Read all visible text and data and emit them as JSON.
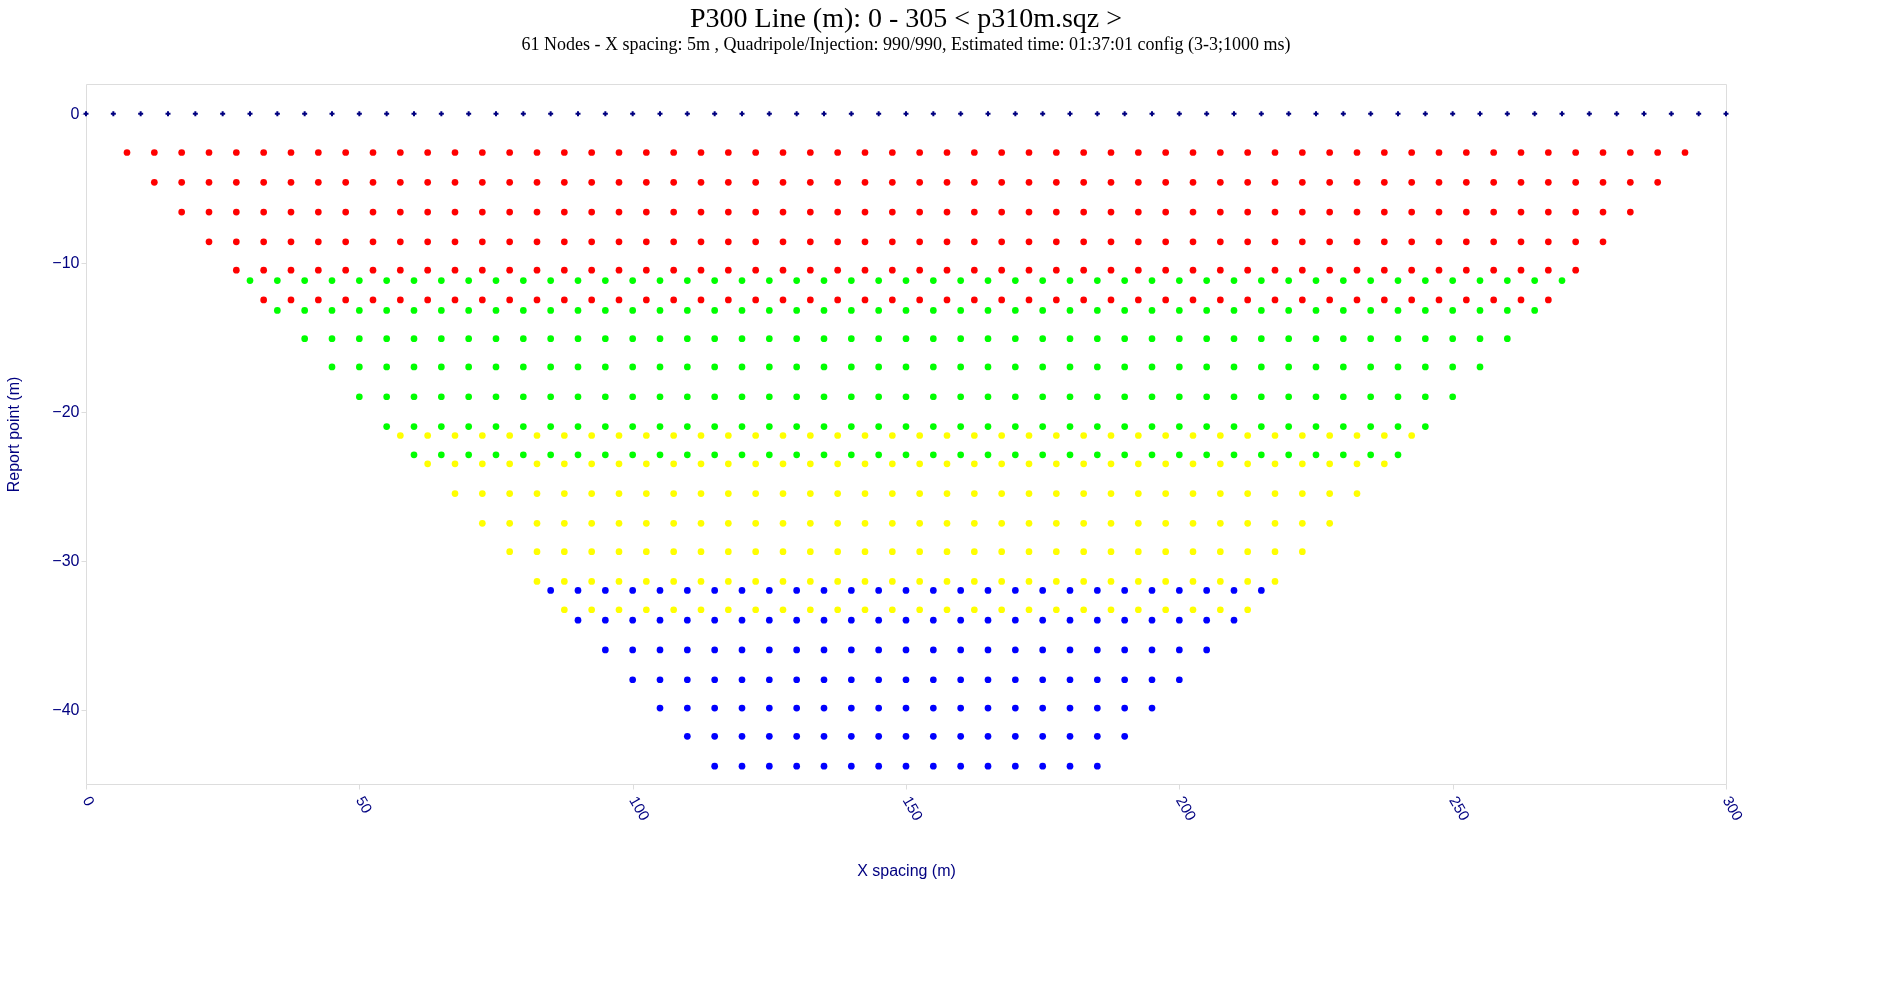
{
  "chart_data": {
    "type": "scatter",
    "title": "P300   Line (m): 0 - 305 < p310m.sqz >",
    "subtitle": "61 Nodes  - X spacing: 5m , Quadripole/Injection: 990/990, Estimated time: 01:37:01 config (3-3;1000 ms)",
    "xlabel": "X spacing (m)",
    "ylabel": "Report point (m)",
    "xlim": [
      0,
      300
    ],
    "ylim": [
      -45,
      2
    ],
    "xticks": [
      0,
      50,
      100,
      150,
      200,
      250,
      300
    ],
    "yticks": [
      0,
      -10,
      -20,
      -30,
      -40
    ],
    "grid": false,
    "legend": false,
    "marker": "circle",
    "series": [
      {
        "color": "#000080",
        "marker": "cross",
        "x": [
          0,
          5,
          10,
          15,
          20,
          25,
          30,
          35,
          40,
          45,
          50,
          55,
          60,
          65,
          70,
          75,
          80,
          85,
          90,
          95,
          100,
          105,
          110,
          115,
          120,
          125,
          130,
          135,
          140,
          145,
          150,
          155,
          160,
          165,
          170,
          175,
          180,
          185,
          190,
          195,
          200,
          205,
          210,
          215,
          220,
          225,
          230,
          235,
          240,
          245,
          250,
          255,
          260,
          265,
          270,
          275,
          280,
          285,
          290,
          295,
          300
        ],
        "values": [
          0,
          0,
          0,
          0,
          0,
          0,
          0,
          0,
          0,
          0,
          0,
          0,
          0,
          0,
          0,
          0,
          0,
          0,
          0,
          0,
          0,
          0,
          0,
          0,
          0,
          0,
          0,
          0,
          0,
          0,
          0,
          0,
          0,
          0,
          0,
          0,
          0,
          0,
          0,
          0,
          0,
          0,
          0,
          0,
          0,
          0,
          0,
          0,
          0,
          0,
          0,
          0,
          0,
          0,
          0,
          0,
          0,
          0,
          0,
          0,
          0
        ]
      },
      {
        "color": "#ff0000",
        "x": [
          7.5,
          12.5,
          17.5,
          22.5,
          27.5,
          32.5,
          37.5,
          42.5,
          47.5,
          52.5,
          57.5,
          62.5,
          67.5,
          72.5,
          77.5,
          82.5,
          87.5,
          92.5,
          97.5,
          102.5,
          107.5,
          112.5,
          117.5,
          122.5,
          127.5,
          132.5,
          137.5,
          142.5,
          147.5,
          152.5,
          157.5,
          162.5,
          167.5,
          172.5,
          177.5,
          182.5,
          187.5,
          192.5,
          197.5,
          202.5,
          207.5,
          212.5,
          217.5,
          222.5,
          227.5,
          232.5,
          237.5,
          242.5,
          247.5,
          252.5,
          257.5,
          262.5,
          267.5,
          272.5,
          277.5,
          282.5,
          287.5,
          292.5
        ],
        "values": [
          -2.6,
          -2.6,
          -2.6,
          -2.6,
          -2.6,
          -2.6,
          -2.6,
          -2.6,
          -2.6,
          -2.6,
          -2.6,
          -2.6,
          -2.6,
          -2.6,
          -2.6,
          -2.6,
          -2.6,
          -2.6,
          -2.6,
          -2.6,
          -2.6,
          -2.6,
          -2.6,
          -2.6,
          -2.6,
          -2.6,
          -2.6,
          -2.6,
          -2.6,
          -2.6,
          -2.6,
          -2.6,
          -2.6,
          -2.6,
          -2.6,
          -2.6,
          -2.6,
          -2.6,
          -2.6,
          -2.6,
          -2.6,
          -2.6,
          -2.6,
          -2.6,
          -2.6,
          -2.6,
          -2.6,
          -2.6,
          -2.6,
          -2.6,
          -2.6,
          -2.6,
          -2.6,
          -2.6,
          -2.6,
          -2.6,
          -2.6,
          -2.6
        ]
      },
      {
        "color": "#ff0000",
        "x": [
          12.5,
          17.5,
          22.5,
          27.5,
          32.5,
          37.5,
          42.5,
          47.5,
          52.5,
          57.5,
          62.5,
          67.5,
          72.5,
          77.5,
          82.5,
          87.5,
          92.5,
          97.5,
          102.5,
          107.5,
          112.5,
          117.5,
          122.5,
          127.5,
          132.5,
          137.5,
          142.5,
          147.5,
          152.5,
          157.5,
          162.5,
          167.5,
          172.5,
          177.5,
          182.5,
          187.5,
          192.5,
          197.5,
          202.5,
          207.5,
          212.5,
          217.5,
          222.5,
          227.5,
          232.5,
          237.5,
          242.5,
          247.5,
          252.5,
          257.5,
          262.5,
          267.5,
          272.5,
          277.5,
          282.5,
          287.5
        ],
        "values": [
          -4.6,
          -4.6,
          -4.6,
          -4.6,
          -4.6,
          -4.6,
          -4.6,
          -4.6,
          -4.6,
          -4.6,
          -4.6,
          -4.6,
          -4.6,
          -4.6,
          -4.6,
          -4.6,
          -4.6,
          -4.6,
          -4.6,
          -4.6,
          -4.6,
          -4.6,
          -4.6,
          -4.6,
          -4.6,
          -4.6,
          -4.6,
          -4.6,
          -4.6,
          -4.6,
          -4.6,
          -4.6,
          -4.6,
          -4.6,
          -4.6,
          -4.6,
          -4.6,
          -4.6,
          -4.6,
          -4.6,
          -4.6,
          -4.6,
          -4.6,
          -4.6,
          -4.6,
          -4.6,
          -4.6,
          -4.6,
          -4.6,
          -4.6,
          -4.6,
          -4.6,
          -4.6,
          -4.6,
          -4.6,
          -4.6
        ]
      },
      {
        "color": "#ff0000",
        "x": [
          17.5,
          22.5,
          27.5,
          32.5,
          37.5,
          42.5,
          47.5,
          52.5,
          57.5,
          62.5,
          67.5,
          72.5,
          77.5,
          82.5,
          87.5,
          92.5,
          97.5,
          102.5,
          107.5,
          112.5,
          117.5,
          122.5,
          127.5,
          132.5,
          137.5,
          142.5,
          147.5,
          152.5,
          157.5,
          162.5,
          167.5,
          172.5,
          177.5,
          182.5,
          187.5,
          192.5,
          197.5,
          202.5,
          207.5,
          212.5,
          217.5,
          222.5,
          227.5,
          232.5,
          237.5,
          242.5,
          247.5,
          252.5,
          257.5,
          262.5,
          267.5,
          272.5,
          277.5,
          282.5
        ],
        "values": [
          -6.6,
          -6.6,
          -6.6,
          -6.6,
          -6.6,
          -6.6,
          -6.6,
          -6.6,
          -6.6,
          -6.6,
          -6.6,
          -6.6,
          -6.6,
          -6.6,
          -6.6,
          -6.6,
          -6.6,
          -6.6,
          -6.6,
          -6.6,
          -6.6,
          -6.6,
          -6.6,
          -6.6,
          -6.6,
          -6.6,
          -6.6,
          -6.6,
          -6.6,
          -6.6,
          -6.6,
          -6.6,
          -6.6,
          -6.6,
          -6.6,
          -6.6,
          -6.6,
          -6.6,
          -6.6,
          -6.6,
          -6.6,
          -6.6,
          -6.6,
          -6.6,
          -6.6,
          -6.6,
          -6.6,
          -6.6,
          -6.6,
          -6.6,
          -6.6,
          -6.6,
          -6.6,
          -6.6
        ]
      },
      {
        "color": "#ff0000",
        "x": [
          22.5,
          27.5,
          32.5,
          37.5,
          42.5,
          47.5,
          52.5,
          57.5,
          62.5,
          67.5,
          72.5,
          77.5,
          82.5,
          87.5,
          92.5,
          97.5,
          102.5,
          107.5,
          112.5,
          117.5,
          122.5,
          127.5,
          132.5,
          137.5,
          142.5,
          147.5,
          152.5,
          157.5,
          162.5,
          167.5,
          172.5,
          177.5,
          182.5,
          187.5,
          192.5,
          197.5,
          202.5,
          207.5,
          212.5,
          217.5,
          222.5,
          227.5,
          232.5,
          237.5,
          242.5,
          247.5,
          252.5,
          257.5,
          262.5,
          267.5,
          272.5,
          277.5
        ],
        "values": [
          -8.6,
          -8.6,
          -8.6,
          -8.6,
          -8.6,
          -8.6,
          -8.6,
          -8.6,
          -8.6,
          -8.6,
          -8.6,
          -8.6,
          -8.6,
          -8.6,
          -8.6,
          -8.6,
          -8.6,
          -8.6,
          -8.6,
          -8.6,
          -8.6,
          -8.6,
          -8.6,
          -8.6,
          -8.6,
          -8.6,
          -8.6,
          -8.6,
          -8.6,
          -8.6,
          -8.6,
          -8.6,
          -8.6,
          -8.6,
          -8.6,
          -8.6,
          -8.6,
          -8.6,
          -8.6,
          -8.6,
          -8.6,
          -8.6,
          -8.6,
          -8.6,
          -8.6,
          -8.6,
          -8.6,
          -8.6,
          -8.6,
          -8.6,
          -8.6,
          -8.6
        ]
      },
      {
        "color": "#ff0000",
        "x": [
          27.5,
          32.5,
          37.5,
          42.5,
          47.5,
          52.5,
          57.5,
          62.5,
          67.5,
          72.5,
          77.5,
          82.5,
          87.5,
          92.5,
          97.5,
          102.5,
          107.5,
          112.5,
          117.5,
          122.5,
          127.5,
          132.5,
          137.5,
          142.5,
          147.5,
          152.5,
          157.5,
          162.5,
          167.5,
          172.5,
          177.5,
          182.5,
          187.5,
          192.5,
          197.5,
          202.5,
          207.5,
          212.5,
          217.5,
          222.5,
          227.5,
          232.5,
          237.5,
          242.5,
          247.5,
          252.5,
          257.5,
          262.5,
          267.5,
          272.5
        ],
        "values": [
          -10.5,
          -10.5,
          -10.5,
          -10.5,
          -10.5,
          -10.5,
          -10.5,
          -10.5,
          -10.5,
          -10.5,
          -10.5,
          -10.5,
          -10.5,
          -10.5,
          -10.5,
          -10.5,
          -10.5,
          -10.5,
          -10.5,
          -10.5,
          -10.5,
          -10.5,
          -10.5,
          -10.5,
          -10.5,
          -10.5,
          -10.5,
          -10.5,
          -10.5,
          -10.5,
          -10.5,
          -10.5,
          -10.5,
          -10.5,
          -10.5,
          -10.5,
          -10.5,
          -10.5,
          -10.5,
          -10.5,
          -10.5,
          -10.5,
          -10.5,
          -10.5,
          -10.5,
          -10.5,
          -10.5,
          -10.5,
          -10.5,
          -10.5
        ]
      },
      {
        "color": "#ff0000",
        "x": [
          32.5,
          37.5,
          42.5,
          47.5,
          52.5,
          57.5,
          62.5,
          67.5,
          72.5,
          77.5,
          82.5,
          87.5,
          92.5,
          97.5,
          102.5,
          107.5,
          112.5,
          117.5,
          122.5,
          127.5,
          132.5,
          137.5,
          142.5,
          147.5,
          152.5,
          157.5,
          162.5,
          167.5,
          172.5,
          177.5,
          182.5,
          187.5,
          192.5,
          197.5,
          202.5,
          207.5,
          212.5,
          217.5,
          222.5,
          227.5,
          232.5,
          237.5,
          242.5,
          247.5,
          252.5,
          257.5,
          262.5,
          267.5
        ],
        "values": [
          -12.5,
          -12.5,
          -12.5,
          -12.5,
          -12.5,
          -12.5,
          -12.5,
          -12.5,
          -12.5,
          -12.5,
          -12.5,
          -12.5,
          -12.5,
          -12.5,
          -12.5,
          -12.5,
          -12.5,
          -12.5,
          -12.5,
          -12.5,
          -12.5,
          -12.5,
          -12.5,
          -12.5,
          -12.5,
          -12.5,
          -12.5,
          -12.5,
          -12.5,
          -12.5,
          -12.5,
          -12.5,
          -12.5,
          -12.5,
          -12.5,
          -12.5,
          -12.5,
          -12.5,
          -12.5,
          -12.5,
          -12.5,
          -12.5,
          -12.5,
          -12.5,
          -12.5,
          -12.5,
          -12.5,
          -12.5
        ]
      },
      {
        "color": "#00ff00",
        "x": [
          30,
          35,
          40,
          45,
          50,
          55,
          60,
          65,
          70,
          75,
          80,
          85,
          90,
          95,
          100,
          105,
          110,
          115,
          120,
          125,
          130,
          135,
          140,
          145,
          150,
          155,
          160,
          165,
          170,
          175,
          180,
          185,
          190,
          195,
          200,
          205,
          210,
          215,
          220,
          225,
          230,
          235,
          240,
          245,
          250,
          255,
          260,
          265,
          270
        ],
        "values": [
          -11.2,
          -11.2,
          -11.2,
          -11.2,
          -11.2,
          -11.2,
          -11.2,
          -11.2,
          -11.2,
          -11.2,
          -11.2,
          -11.2,
          -11.2,
          -11.2,
          -11.2,
          -11.2,
          -11.2,
          -11.2,
          -11.2,
          -11.2,
          -11.2,
          -11.2,
          -11.2,
          -11.2,
          -11.2,
          -11.2,
          -11.2,
          -11.2,
          -11.2,
          -11.2,
          -11.2,
          -11.2,
          -11.2,
          -11.2,
          -11.2,
          -11.2,
          -11.2,
          -11.2,
          -11.2,
          -11.2,
          -11.2,
          -11.2,
          -11.2,
          -11.2,
          -11.2,
          -11.2,
          -11.2,
          -11.2,
          -11.2
        ]
      },
      {
        "color": "#00ff00",
        "x": [
          35,
          40,
          45,
          50,
          55,
          60,
          65,
          70,
          75,
          80,
          85,
          90,
          95,
          100,
          105,
          110,
          115,
          120,
          125,
          130,
          135,
          140,
          145,
          150,
          155,
          160,
          165,
          170,
          175,
          180,
          185,
          190,
          195,
          200,
          205,
          210,
          215,
          220,
          225,
          230,
          235,
          240,
          245,
          250,
          255,
          260,
          265
        ],
        "values": [
          -13.2,
          -13.2,
          -13.2,
          -13.2,
          -13.2,
          -13.2,
          -13.2,
          -13.2,
          -13.2,
          -13.2,
          -13.2,
          -13.2,
          -13.2,
          -13.2,
          -13.2,
          -13.2,
          -13.2,
          -13.2,
          -13.2,
          -13.2,
          -13.2,
          -13.2,
          -13.2,
          -13.2,
          -13.2,
          -13.2,
          -13.2,
          -13.2,
          -13.2,
          -13.2,
          -13.2,
          -13.2,
          -13.2,
          -13.2,
          -13.2,
          -13.2,
          -13.2,
          -13.2,
          -13.2,
          -13.2,
          -13.2,
          -13.2,
          -13.2,
          -13.2,
          -13.2,
          -13.2,
          -13.2
        ]
      },
      {
        "color": "#00ff00",
        "x": [
          40,
          45,
          50,
          55,
          60,
          65,
          70,
          75,
          80,
          85,
          90,
          95,
          100,
          105,
          110,
          115,
          120,
          125,
          130,
          135,
          140,
          145,
          150,
          155,
          160,
          165,
          170,
          175,
          180,
          185,
          190,
          195,
          200,
          205,
          210,
          215,
          220,
          225,
          230,
          235,
          240,
          245,
          250,
          255,
          260
        ],
        "values": [
          -15.1,
          -15.1,
          -15.1,
          -15.1,
          -15.1,
          -15.1,
          -15.1,
          -15.1,
          -15.1,
          -15.1,
          -15.1,
          -15.1,
          -15.1,
          -15.1,
          -15.1,
          -15.1,
          -15.1,
          -15.1,
          -15.1,
          -15.1,
          -15.1,
          -15.1,
          -15.1,
          -15.1,
          -15.1,
          -15.1,
          -15.1,
          -15.1,
          -15.1,
          -15.1,
          -15.1,
          -15.1,
          -15.1,
          -15.1,
          -15.1,
          -15.1,
          -15.1,
          -15.1,
          -15.1,
          -15.1,
          -15.1,
          -15.1,
          -15.1,
          -15.1,
          -15.1
        ]
      },
      {
        "color": "#00ff00",
        "x": [
          45,
          50,
          55,
          60,
          65,
          70,
          75,
          80,
          85,
          90,
          95,
          100,
          105,
          110,
          115,
          120,
          125,
          130,
          135,
          140,
          145,
          150,
          155,
          160,
          165,
          170,
          175,
          180,
          185,
          190,
          195,
          200,
          205,
          210,
          215,
          220,
          225,
          230,
          235,
          240,
          245,
          250,
          255
        ],
        "values": [
          -17,
          -17,
          -17,
          -17,
          -17,
          -17,
          -17,
          -17,
          -17,
          -17,
          -17,
          -17,
          -17,
          -17,
          -17,
          -17,
          -17,
          -17,
          -17,
          -17,
          -17,
          -17,
          -17,
          -17,
          -17,
          -17,
          -17,
          -17,
          -17,
          -17,
          -17,
          -17,
          -17,
          -17,
          -17,
          -17,
          -17,
          -17,
          -17,
          -17,
          -17,
          -17,
          -17
        ]
      },
      {
        "color": "#00ff00",
        "x": [
          50,
          55,
          60,
          65,
          70,
          75,
          80,
          85,
          90,
          95,
          100,
          105,
          110,
          115,
          120,
          125,
          130,
          135,
          140,
          145,
          150,
          155,
          160,
          165,
          170,
          175,
          180,
          185,
          190,
          195,
          200,
          205,
          210,
          215,
          220,
          225,
          230,
          235,
          240,
          245,
          250
        ],
        "values": [
          -19,
          -19,
          -19,
          -19,
          -19,
          -19,
          -19,
          -19,
          -19,
          -19,
          -19,
          -19,
          -19,
          -19,
          -19,
          -19,
          -19,
          -19,
          -19,
          -19,
          -19,
          -19,
          -19,
          -19,
          -19,
          -19,
          -19,
          -19,
          -19,
          -19,
          -19,
          -19,
          -19,
          -19,
          -19,
          -19,
          -19,
          -19,
          -19,
          -19,
          -19
        ]
      },
      {
        "color": "#00ff00",
        "x": [
          55,
          60,
          65,
          70,
          75,
          80,
          85,
          90,
          95,
          100,
          105,
          110,
          115,
          120,
          125,
          130,
          135,
          140,
          145,
          150,
          155,
          160,
          165,
          170,
          175,
          180,
          185,
          190,
          195,
          200,
          205,
          210,
          215,
          220,
          225,
          230,
          235,
          240,
          245
        ],
        "values": [
          -21,
          -21,
          -21,
          -21,
          -21,
          -21,
          -21,
          -21,
          -21,
          -21,
          -21,
          -21,
          -21,
          -21,
          -21,
          -21,
          -21,
          -21,
          -21,
          -21,
          -21,
          -21,
          -21,
          -21,
          -21,
          -21,
          -21,
          -21,
          -21,
          -21,
          -21,
          -21,
          -21,
          -21,
          -21,
          -21,
          -21,
          -21,
          -21
        ]
      },
      {
        "color": "#00ff00",
        "x": [
          60,
          65,
          70,
          75,
          80,
          85,
          90,
          95,
          100,
          105,
          110,
          115,
          120,
          125,
          130,
          135,
          140,
          145,
          150,
          155,
          160,
          165,
          170,
          175,
          180,
          185,
          190,
          195,
          200,
          205,
          210,
          215,
          220,
          225,
          230,
          235,
          240
        ],
        "values": [
          -22.9,
          -22.9,
          -22.9,
          -22.9,
          -22.9,
          -22.9,
          -22.9,
          -22.9,
          -22.9,
          -22.9,
          -22.9,
          -22.9,
          -22.9,
          -22.9,
          -22.9,
          -22.9,
          -22.9,
          -22.9,
          -22.9,
          -22.9,
          -22.9,
          -22.9,
          -22.9,
          -22.9,
          -22.9,
          -22.9,
          -22.9,
          -22.9,
          -22.9,
          -22.9,
          -22.9,
          -22.9,
          -22.9,
          -22.9,
          -22.9,
          -22.9,
          -22.9
        ]
      },
      {
        "color": "#ffff00",
        "x": [
          57.5,
          62.5,
          67.5,
          72.5,
          77.5,
          82.5,
          87.5,
          92.5,
          97.5,
          102.5,
          107.5,
          112.5,
          117.5,
          122.5,
          127.5,
          132.5,
          137.5,
          142.5,
          147.5,
          152.5,
          157.5,
          162.5,
          167.5,
          172.5,
          177.5,
          182.5,
          187.5,
          192.5,
          197.5,
          202.5,
          207.5,
          212.5,
          217.5,
          222.5,
          227.5,
          232.5,
          237.5,
          242.5
        ],
        "values": [
          -21.6,
          -21.6,
          -21.6,
          -21.6,
          -21.6,
          -21.6,
          -21.6,
          -21.6,
          -21.6,
          -21.6,
          -21.6,
          -21.6,
          -21.6,
          -21.6,
          -21.6,
          -21.6,
          -21.6,
          -21.6,
          -21.6,
          -21.6,
          -21.6,
          -21.6,
          -21.6,
          -21.6,
          -21.6,
          -21.6,
          -21.6,
          -21.6,
          -21.6,
          -21.6,
          -21.6,
          -21.6,
          -21.6,
          -21.6,
          -21.6,
          -21.6,
          -21.6,
          -21.6
        ]
      },
      {
        "color": "#ffff00",
        "x": [
          62.5,
          67.5,
          72.5,
          77.5,
          82.5,
          87.5,
          92.5,
          97.5,
          102.5,
          107.5,
          112.5,
          117.5,
          122.5,
          127.5,
          132.5,
          137.5,
          142.5,
          147.5,
          152.5,
          157.5,
          162.5,
          167.5,
          172.5,
          177.5,
          182.5,
          187.5,
          192.5,
          197.5,
          202.5,
          207.5,
          212.5,
          217.5,
          222.5,
          227.5,
          232.5,
          237.5
        ],
        "values": [
          -23.5,
          -23.5,
          -23.5,
          -23.5,
          -23.5,
          -23.5,
          -23.5,
          -23.5,
          -23.5,
          -23.5,
          -23.5,
          -23.5,
          -23.5,
          -23.5,
          -23.5,
          -23.5,
          -23.5,
          -23.5,
          -23.5,
          -23.5,
          -23.5,
          -23.5,
          -23.5,
          -23.5,
          -23.5,
          -23.5,
          -23.5,
          -23.5,
          -23.5,
          -23.5,
          -23.5,
          -23.5,
          -23.5,
          -23.5,
          -23.5,
          -23.5
        ]
      },
      {
        "color": "#ffff00",
        "x": [
          67.5,
          72.5,
          77.5,
          82.5,
          87.5,
          92.5,
          97.5,
          102.5,
          107.5,
          112.5,
          117.5,
          122.5,
          127.5,
          132.5,
          137.5,
          142.5,
          147.5,
          152.5,
          157.5,
          162.5,
          167.5,
          172.5,
          177.5,
          182.5,
          187.5,
          192.5,
          197.5,
          202.5,
          207.5,
          212.5,
          217.5,
          222.5,
          227.5,
          232.5
        ],
        "values": [
          -25.5,
          -25.5,
          -25.5,
          -25.5,
          -25.5,
          -25.5,
          -25.5,
          -25.5,
          -25.5,
          -25.5,
          -25.5,
          -25.5,
          -25.5,
          -25.5,
          -25.5,
          -25.5,
          -25.5,
          -25.5,
          -25.5,
          -25.5,
          -25.5,
          -25.5,
          -25.5,
          -25.5,
          -25.5,
          -25.5,
          -25.5,
          -25.5,
          -25.5,
          -25.5,
          -25.5,
          -25.5,
          -25.5,
          -25.5
        ]
      },
      {
        "color": "#ffff00",
        "x": [
          72.5,
          77.5,
          82.5,
          87.5,
          92.5,
          97.5,
          102.5,
          107.5,
          112.5,
          117.5,
          122.5,
          127.5,
          132.5,
          137.5,
          142.5,
          147.5,
          152.5,
          157.5,
          162.5,
          167.5,
          172.5,
          177.5,
          182.5,
          187.5,
          192.5,
          197.5,
          202.5,
          207.5,
          212.5,
          217.5,
          222.5,
          227.5
        ],
        "values": [
          -27.5,
          -27.5,
          -27.5,
          -27.5,
          -27.5,
          -27.5,
          -27.5,
          -27.5,
          -27.5,
          -27.5,
          -27.5,
          -27.5,
          -27.5,
          -27.5,
          -27.5,
          -27.5,
          -27.5,
          -27.5,
          -27.5,
          -27.5,
          -27.5,
          -27.5,
          -27.5,
          -27.5,
          -27.5,
          -27.5,
          -27.5,
          -27.5,
          -27.5,
          -27.5,
          -27.5,
          -27.5
        ]
      },
      {
        "color": "#ffff00",
        "x": [
          77.5,
          82.5,
          87.5,
          92.5,
          97.5,
          102.5,
          107.5,
          112.5,
          117.5,
          122.5,
          127.5,
          132.5,
          137.5,
          142.5,
          147.5,
          152.5,
          157.5,
          162.5,
          167.5,
          172.5,
          177.5,
          182.5,
          187.5,
          192.5,
          197.5,
          202.5,
          207.5,
          212.5,
          217.5,
          222.5
        ],
        "values": [
          -29.4,
          -29.4,
          -29.4,
          -29.4,
          -29.4,
          -29.4,
          -29.4,
          -29.4,
          -29.4,
          -29.4,
          -29.4,
          -29.4,
          -29.4,
          -29.4,
          -29.4,
          -29.4,
          -29.4,
          -29.4,
          -29.4,
          -29.4,
          -29.4,
          -29.4,
          -29.4,
          -29.4,
          -29.4,
          -29.4,
          -29.4,
          -29.4,
          -29.4,
          -29.4
        ]
      },
      {
        "color": "#ffff00",
        "x": [
          82.5,
          87.5,
          92.5,
          97.5,
          102.5,
          107.5,
          112.5,
          117.5,
          122.5,
          127.5,
          132.5,
          137.5,
          142.5,
          147.5,
          152.5,
          157.5,
          162.5,
          167.5,
          172.5,
          177.5,
          182.5,
          187.5,
          192.5,
          197.5,
          202.5,
          207.5,
          212.5,
          217.5
        ],
        "values": [
          -31.4,
          -31.4,
          -31.4,
          -31.4,
          -31.4,
          -31.4,
          -31.4,
          -31.4,
          -31.4,
          -31.4,
          -31.4,
          -31.4,
          -31.4,
          -31.4,
          -31.4,
          -31.4,
          -31.4,
          -31.4,
          -31.4,
          -31.4,
          -31.4,
          -31.4,
          -31.4,
          -31.4,
          -31.4,
          -31.4,
          -31.4,
          -31.4
        ]
      },
      {
        "color": "#ffff00",
        "x": [
          87.5,
          92.5,
          97.5,
          102.5,
          107.5,
          112.5,
          117.5,
          122.5,
          127.5,
          132.5,
          137.5,
          142.5,
          147.5,
          152.5,
          157.5,
          162.5,
          167.5,
          172.5,
          177.5,
          182.5,
          187.5,
          192.5,
          197.5,
          202.5,
          207.5,
          212.5
        ],
        "values": [
          -33.3,
          -33.3,
          -33.3,
          -33.3,
          -33.3,
          -33.3,
          -33.3,
          -33.3,
          -33.3,
          -33.3,
          -33.3,
          -33.3,
          -33.3,
          -33.3,
          -33.3,
          -33.3,
          -33.3,
          -33.3,
          -33.3,
          -33.3,
          -33.3,
          -33.3,
          -33.3,
          -33.3,
          -33.3,
          -33.3
        ]
      },
      {
        "color": "#0000ff",
        "x": [
          85,
          90,
          95,
          100,
          105,
          110,
          115,
          120,
          125,
          130,
          135,
          140,
          145,
          150,
          155,
          160,
          165,
          170,
          175,
          180,
          185,
          190,
          195,
          200,
          205,
          210,
          215
        ],
        "values": [
          -32,
          -32,
          -32,
          -32,
          -32,
          -32,
          -32,
          -32,
          -32,
          -32,
          -32,
          -32,
          -32,
          -32,
          -32,
          -32,
          -32,
          -32,
          -32,
          -32,
          -32,
          -32,
          -32,
          -32,
          -32,
          -32,
          -32
        ]
      },
      {
        "color": "#0000ff",
        "x": [
          90,
          95,
          100,
          105,
          110,
          115,
          120,
          125,
          130,
          135,
          140,
          145,
          150,
          155,
          160,
          165,
          170,
          175,
          180,
          185,
          190,
          195,
          200,
          205,
          210
        ],
        "values": [
          -34,
          -34,
          -34,
          -34,
          -34,
          -34,
          -34,
          -34,
          -34,
          -34,
          -34,
          -34,
          -34,
          -34,
          -34,
          -34,
          -34,
          -34,
          -34,
          -34,
          -34,
          -34,
          -34,
          -34,
          -34
        ]
      },
      {
        "color": "#0000ff",
        "x": [
          95,
          100,
          105,
          110,
          115,
          120,
          125,
          130,
          135,
          140,
          145,
          150,
          155,
          160,
          165,
          170,
          175,
          180,
          185,
          190,
          195,
          200,
          205
        ],
        "values": [
          -36,
          -36,
          -36,
          -36,
          -36,
          -36,
          -36,
          -36,
          -36,
          -36,
          -36,
          -36,
          -36,
          -36,
          -36,
          -36,
          -36,
          -36,
          -36,
          -36,
          -36,
          -36,
          -36
        ]
      },
      {
        "color": "#0000ff",
        "x": [
          100,
          105,
          110,
          115,
          120,
          125,
          130,
          135,
          140,
          145,
          150,
          155,
          160,
          165,
          170,
          175,
          180,
          185,
          190,
          195,
          200
        ],
        "values": [
          -38,
          -38,
          -38,
          -38,
          -38,
          -38,
          -38,
          -38,
          -38,
          -38,
          -38,
          -38,
          -38,
          -38,
          -38,
          -38,
          -38,
          -38,
          -38,
          -38,
          -38
        ]
      },
      {
        "color": "#0000ff",
        "x": [
          105,
          110,
          115,
          120,
          125,
          130,
          135,
          140,
          145,
          150,
          155,
          160,
          165,
          170,
          175,
          180,
          185,
          190,
          195
        ],
        "values": [
          -39.9,
          -39.9,
          -39.9,
          -39.9,
          -39.9,
          -39.9,
          -39.9,
          -39.9,
          -39.9,
          -39.9,
          -39.9,
          -39.9,
          -39.9,
          -39.9,
          -39.9,
          -39.9,
          -39.9,
          -39.9,
          -39.9
        ]
      },
      {
        "color": "#0000ff",
        "x": [
          110,
          115,
          120,
          125,
          130,
          135,
          140,
          145,
          150,
          155,
          160,
          165,
          170,
          175,
          180,
          185,
          190
        ],
        "values": [
          -41.8,
          -41.8,
          -41.8,
          -41.8,
          -41.8,
          -41.8,
          -41.8,
          -41.8,
          -41.8,
          -41.8,
          -41.8,
          -41.8,
          -41.8,
          -41.8,
          -41.8,
          -41.8,
          -41.8
        ]
      },
      {
        "color": "#0000ff",
        "x": [
          115,
          120,
          125,
          130,
          135,
          140,
          145,
          150,
          155,
          160,
          165,
          170,
          175,
          180,
          185
        ],
        "values": [
          -43.8,
          -43.8,
          -43.8,
          -43.8,
          -43.8,
          -43.8,
          -43.8,
          -43.8,
          -43.8,
          -43.8,
          -43.8,
          -43.8,
          -43.8,
          -43.8,
          -43.8
        ]
      }
    ]
  }
}
